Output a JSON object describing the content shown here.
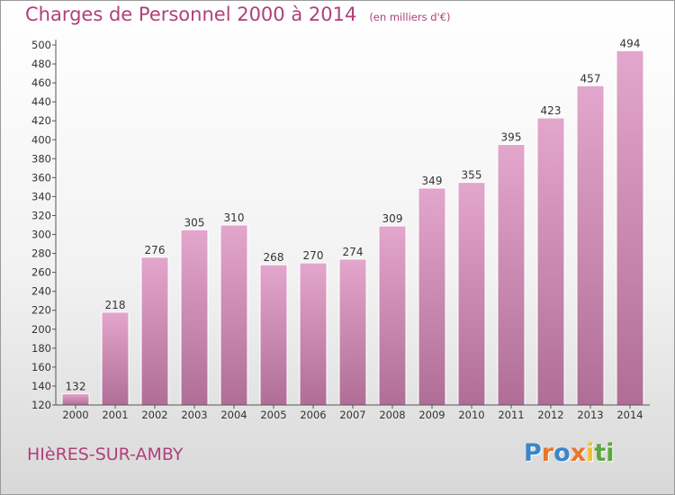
{
  "header": {
    "title": "Charges de Personnel 2000 à 2014",
    "subtitle": "(en milliers d'€)"
  },
  "footer": {
    "commune": "HIèRES-SUR-AMBY",
    "logo_letters": [
      "P",
      "r",
      "o",
      "x",
      "i",
      "t",
      "i"
    ]
  },
  "colors": {
    "title": "#b0407a",
    "bar_top": "#e3a6cc",
    "bar_bottom": "#b06e96",
    "axis": "#555555",
    "logo": [
      "#3a86c8",
      "#e8762b",
      "#3a86c8",
      "#e8762b",
      "#f2c12e",
      "#59a83a",
      "#59a83a"
    ]
  },
  "chart_data": {
    "type": "bar",
    "title": "Charges de Personnel 2000 à 2014",
    "subtitle": "(en milliers d'€)",
    "categories": [
      "2000",
      "2001",
      "2002",
      "2003",
      "2004",
      "2005",
      "2006",
      "2007",
      "2008",
      "2009",
      "2010",
      "2011",
      "2012",
      "2013",
      "2014"
    ],
    "values": [
      132,
      218,
      276,
      305,
      310,
      268,
      270,
      274,
      309,
      349,
      355,
      395,
      423,
      457,
      494
    ],
    "xlabel": "",
    "ylabel": "",
    "ylim": [
      120,
      500
    ],
    "yticks": [
      120,
      140,
      160,
      180,
      200,
      220,
      240,
      260,
      280,
      300,
      320,
      340,
      360,
      380,
      400,
      420,
      440,
      460,
      480,
      500
    ],
    "grid": false,
    "legend": "none"
  }
}
